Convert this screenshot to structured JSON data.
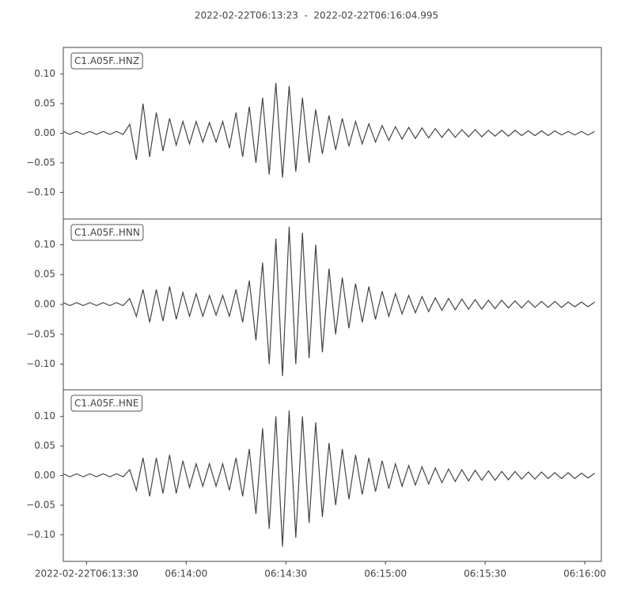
{
  "chart_data": [
    {
      "type": "line",
      "title": "2022-02-22T06:13:23  -  2022-02-22T06:16:04.995",
      "xlim": [
        "2022-02-22T06:13:23",
        "2022-02-22T06:16:04.995"
      ],
      "ylim": [
        -0.145,
        0.145
      ],
      "yticks": [
        {
          "value": -0.1,
          "label": "−0.10"
        },
        {
          "value": -0.05,
          "label": "−0.05"
        },
        {
          "value": 0,
          "label": "0.00"
        },
        {
          "value": 0.05,
          "label": "0.05"
        },
        {
          "value": 0.1,
          "label": "0.10"
        }
      ],
      "x": [
        "06:13:23",
        "06:13:25",
        "06:13:27",
        "06:13:29",
        "06:13:31",
        "06:13:33",
        "06:13:35",
        "06:13:37",
        "06:13:39",
        "06:13:41",
        "06:13:43",
        "06:13:45",
        "06:13:47",
        "06:13:49",
        "06:13:51",
        "06:13:53",
        "06:13:55",
        "06:13:57",
        "06:13:59",
        "06:14:01",
        "06:14:03",
        "06:14:05",
        "06:14:07",
        "06:14:09",
        "06:14:11",
        "06:14:13",
        "06:14:15",
        "06:14:17",
        "06:14:19",
        "06:14:21",
        "06:14:23",
        "06:14:25",
        "06:14:27",
        "06:14:29",
        "06:14:31",
        "06:14:33",
        "06:14:35",
        "06:14:37",
        "06:14:39",
        "06:14:41",
        "06:14:43",
        "06:14:45",
        "06:14:47",
        "06:14:49",
        "06:14:51",
        "06:14:53",
        "06:14:55",
        "06:14:57",
        "06:14:59",
        "06:15:01",
        "06:15:03",
        "06:15:05",
        "06:15:07",
        "06:15:09",
        "06:15:11",
        "06:15:13",
        "06:15:15",
        "06:15:17",
        "06:15:19",
        "06:15:21",
        "06:15:23",
        "06:15:25",
        "06:15:27",
        "06:15:29",
        "06:15:31",
        "06:15:33",
        "06:15:35",
        "06:15:37",
        "06:15:39",
        "06:15:41",
        "06:15:43",
        "06:15:45",
        "06:15:47",
        "06:15:49",
        "06:15:51",
        "06:15:53",
        "06:15:55",
        "06:15:57",
        "06:15:59",
        "06:16:01",
        "06:16:03"
      ],
      "series": [
        {
          "name": "C1.A05F..HNZ",
          "color": "#444444",
          "values": [
            0.003,
            -0.002,
            0.003,
            -0.002,
            0.003,
            -0.002,
            0.003,
            -0.002,
            0.003,
            -0.002,
            0.015,
            -0.045,
            0.05,
            -0.04,
            0.035,
            -0.03,
            0.025,
            -0.02,
            0.02,
            -0.018,
            0.02,
            -0.015,
            0.018,
            -0.015,
            0.02,
            -0.025,
            0.035,
            -0.04,
            0.045,
            -0.05,
            0.06,
            -0.07,
            0.085,
            -0.075,
            0.08,
            -0.065,
            0.06,
            -0.05,
            0.04,
            -0.035,
            0.03,
            -0.028,
            0.025,
            -0.022,
            0.02,
            -0.018,
            0.016,
            -0.015,
            0.013,
            -0.012,
            0.011,
            -0.01,
            0.01,
            -0.009,
            0.009,
            -0.008,
            0.008,
            -0.007,
            0.007,
            -0.007,
            0.006,
            -0.006,
            0.006,
            -0.006,
            0.005,
            -0.005,
            0.005,
            -0.005,
            0.005,
            -0.004,
            0.004,
            -0.004,
            0.004,
            -0.004,
            0.004,
            -0.003,
            0.003,
            -0.003,
            0.003,
            -0.003,
            0.003
          ]
        }
      ]
    },
    {
      "type": "line",
      "xlim": [
        "2022-02-22T06:13:23",
        "2022-02-22T06:16:04.995"
      ],
      "ylim": [
        -0.143,
        0.143
      ],
      "yticks": [
        {
          "value": -0.1,
          "label": "−0.10"
        },
        {
          "value": -0.05,
          "label": "−0.05"
        },
        {
          "value": 0,
          "label": "0.00"
        },
        {
          "value": 0.05,
          "label": "0.05"
        },
        {
          "value": 0.1,
          "label": "0.10"
        }
      ],
      "x": [
        "06:13:23",
        "06:13:25",
        "06:13:27",
        "06:13:29",
        "06:13:31",
        "06:13:33",
        "06:13:35",
        "06:13:37",
        "06:13:39",
        "06:13:41",
        "06:13:43",
        "06:13:45",
        "06:13:47",
        "06:13:49",
        "06:13:51",
        "06:13:53",
        "06:13:55",
        "06:13:57",
        "06:13:59",
        "06:14:01",
        "06:14:03",
        "06:14:05",
        "06:14:07",
        "06:14:09",
        "06:14:11",
        "06:14:13",
        "06:14:15",
        "06:14:17",
        "06:14:19",
        "06:14:21",
        "06:14:23",
        "06:14:25",
        "06:14:27",
        "06:14:29",
        "06:14:31",
        "06:14:33",
        "06:14:35",
        "06:14:37",
        "06:14:39",
        "06:14:41",
        "06:14:43",
        "06:14:45",
        "06:14:47",
        "06:14:49",
        "06:14:51",
        "06:14:53",
        "06:14:55",
        "06:14:57",
        "06:14:59",
        "06:15:01",
        "06:15:03",
        "06:15:05",
        "06:15:07",
        "06:15:09",
        "06:15:11",
        "06:15:13",
        "06:15:15",
        "06:15:17",
        "06:15:19",
        "06:15:21",
        "06:15:23",
        "06:15:25",
        "06:15:27",
        "06:15:29",
        "06:15:31",
        "06:15:33",
        "06:15:35",
        "06:15:37",
        "06:15:39",
        "06:15:41",
        "06:15:43",
        "06:15:45",
        "06:15:47",
        "06:15:49",
        "06:15:51",
        "06:15:53",
        "06:15:55",
        "06:15:57",
        "06:15:59",
        "06:16:01",
        "06:16:03"
      ],
      "series": [
        {
          "name": "C1.A05F..HNN",
          "color": "#444444",
          "values": [
            0.003,
            -0.002,
            0.003,
            -0.002,
            0.003,
            -0.002,
            0.003,
            -0.002,
            0.003,
            -0.002,
            0.01,
            -0.02,
            0.025,
            -0.03,
            0.025,
            -0.028,
            0.03,
            -0.025,
            0.02,
            -0.02,
            0.018,
            -0.02,
            0.015,
            -0.018,
            0.015,
            -0.02,
            0.025,
            -0.03,
            0.04,
            -0.06,
            0.07,
            -0.1,
            0.11,
            -0.12,
            0.13,
            -0.1,
            0.12,
            -0.09,
            0.1,
            -0.08,
            0.06,
            -0.05,
            0.045,
            -0.04,
            0.035,
            -0.03,
            0.03,
            -0.025,
            0.022,
            -0.02,
            0.018,
            -0.016,
            0.015,
            -0.014,
            0.013,
            -0.012,
            0.011,
            -0.01,
            0.01,
            -0.009,
            0.009,
            -0.008,
            0.008,
            -0.008,
            0.007,
            -0.007,
            0.007,
            -0.006,
            0.006,
            -0.006,
            0.006,
            -0.005,
            0.005,
            -0.005,
            0.005,
            -0.005,
            0.004,
            -0.004,
            0.004,
            -0.004,
            0.004
          ]
        }
      ]
    },
    {
      "type": "line",
      "xlim": [
        "2022-02-22T06:13:23",
        "2022-02-22T06:16:04.995"
      ],
      "ylim": [
        -0.145,
        0.145
      ],
      "yticks": [
        {
          "value": -0.1,
          "label": "−0.10"
        },
        {
          "value": -0.05,
          "label": "−0.05"
        },
        {
          "value": 0,
          "label": "0.00"
        },
        {
          "value": 0.05,
          "label": "0.05"
        },
        {
          "value": 0.1,
          "label": "0.10"
        }
      ],
      "xticks": [
        {
          "value": "06:13:30",
          "label": "2022-02-22T06:13:30"
        },
        "06:14:00",
        "06:14:30",
        "06:15:00",
        "06:15:30",
        "06:16:00"
      ],
      "x": [
        "06:13:23",
        "06:13:25",
        "06:13:27",
        "06:13:29",
        "06:13:31",
        "06:13:33",
        "06:13:35",
        "06:13:37",
        "06:13:39",
        "06:13:41",
        "06:13:43",
        "06:13:45",
        "06:13:47",
        "06:13:49",
        "06:13:51",
        "06:13:53",
        "06:13:55",
        "06:13:57",
        "06:13:59",
        "06:14:01",
        "06:14:03",
        "06:14:05",
        "06:14:07",
        "06:14:09",
        "06:14:11",
        "06:14:13",
        "06:14:15",
        "06:14:17",
        "06:14:19",
        "06:14:21",
        "06:14:23",
        "06:14:25",
        "06:14:27",
        "06:14:29",
        "06:14:31",
        "06:14:33",
        "06:14:35",
        "06:14:37",
        "06:14:39",
        "06:14:41",
        "06:14:43",
        "06:14:45",
        "06:14:47",
        "06:14:49",
        "06:14:51",
        "06:14:53",
        "06:14:55",
        "06:14:57",
        "06:14:59",
        "06:15:01",
        "06:15:03",
        "06:15:05",
        "06:15:07",
        "06:15:09",
        "06:15:11",
        "06:15:13",
        "06:15:15",
        "06:15:17",
        "06:15:19",
        "06:15:21",
        "06:15:23",
        "06:15:25",
        "06:15:27",
        "06:15:29",
        "06:15:31",
        "06:15:33",
        "06:15:35",
        "06:15:37",
        "06:15:39",
        "06:15:41",
        "06:15:43",
        "06:15:45",
        "06:15:47",
        "06:15:49",
        "06:15:51",
        "06:15:53",
        "06:15:55",
        "06:15:57",
        "06:15:59",
        "06:16:01",
        "06:16:03"
      ],
      "series": [
        {
          "name": "C1.A05F..HNE",
          "color": "#444444",
          "values": [
            0.003,
            -0.002,
            0.003,
            -0.002,
            0.003,
            -0.002,
            0.003,
            -0.002,
            0.003,
            -0.002,
            0.01,
            -0.025,
            0.03,
            -0.035,
            0.03,
            -0.03,
            0.035,
            -0.03,
            0.025,
            -0.02,
            0.02,
            -0.018,
            0.02,
            -0.018,
            0.02,
            -0.025,
            0.03,
            -0.035,
            0.045,
            -0.065,
            0.08,
            -0.09,
            0.1,
            -0.12,
            0.11,
            -0.105,
            0.1,
            -0.08,
            0.09,
            -0.07,
            0.055,
            -0.05,
            0.045,
            -0.04,
            0.035,
            -0.032,
            0.03,
            -0.027,
            0.025,
            -0.022,
            0.02,
            -0.018,
            0.017,
            -0.016,
            0.015,
            -0.014,
            0.013,
            -0.012,
            0.011,
            -0.01,
            0.01,
            -0.009,
            0.009,
            -0.008,
            0.008,
            -0.008,
            0.007,
            -0.007,
            0.007,
            -0.006,
            0.006,
            -0.006,
            0.006,
            -0.005,
            0.005,
            -0.005,
            0.005,
            -0.005,
            0.004,
            -0.004,
            0.004
          ]
        }
      ]
    }
  ]
}
